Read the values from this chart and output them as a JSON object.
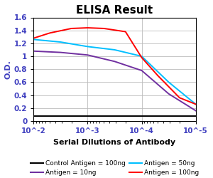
{
  "title": "ELISA Result",
  "xlabel": "Serial Dilutions of Antibody",
  "ylabel": "O.D.",
  "ylim": [
    0,
    1.6
  ],
  "yticks": [
    0,
    0.2,
    0.4,
    0.6,
    0.8,
    1.0,
    1.2,
    1.4,
    1.6
  ],
  "ytick_labels": [
    "0",
    "0.2",
    "0.4",
    "0.6",
    "0.8",
    "1",
    "1.2",
    "1.4",
    "1.6"
  ],
  "xtick_vals": [
    -2,
    -3,
    -4,
    -5
  ],
  "xtick_labels": [
    "10^-2",
    "10^-3",
    "10^-4",
    "10^-5"
  ],
  "lines": {
    "control": {
      "color": "#000000",
      "label": "Control Antigen = 100ng",
      "x_log": [
        -2,
        -2.5,
        -3,
        -3.5,
        -4,
        -4.5,
        -5
      ],
      "y": [
        0.08,
        0.08,
        0.08,
        0.08,
        0.08,
        0.08,
        0.08
      ]
    },
    "antigen_10ng": {
      "color": "#7030A0",
      "label": "Antigen = 10ng",
      "x_log": [
        -2,
        -2.5,
        -3,
        -3.5,
        -4,
        -4.5,
        -5
      ],
      "y": [
        1.08,
        1.06,
        1.02,
        0.92,
        0.78,
        0.42,
        0.16
      ]
    },
    "antigen_50ng": {
      "color": "#00BFFF",
      "label": "Antigen = 50ng",
      "x_log": [
        -2,
        -2.5,
        -3,
        -3.5,
        -4,
        -4.5,
        -5
      ],
      "y": [
        1.26,
        1.22,
        1.15,
        1.1,
        1.0,
        0.6,
        0.26
      ]
    },
    "antigen_100ng": {
      "color": "#FF0000",
      "label": "Antigen = 100ng",
      "x_log": [
        -2,
        -2.3,
        -2.7,
        -3,
        -3.3,
        -3.7,
        -4,
        -4.3,
        -4.7,
        -5
      ],
      "y": [
        1.28,
        1.36,
        1.43,
        1.44,
        1.43,
        1.38,
        0.98,
        0.7,
        0.36,
        0.26
      ]
    }
  },
  "legend": [
    {
      "label": "Control Antigen = 100ng",
      "color": "#000000"
    },
    {
      "label": "Antigen = 10ng",
      "color": "#7030A0"
    },
    {
      "label": "Antigen = 50ng",
      "color": "#00BFFF"
    },
    {
      "label": "Antigen = 100ng",
      "color": "#FF0000"
    }
  ],
  "background_color": "#ffffff",
  "grid_color": "#bbbbbb",
  "title_fontsize": 11,
  "label_fontsize": 8,
  "tick_fontsize": 7.5,
  "legend_fontsize": 6.5
}
